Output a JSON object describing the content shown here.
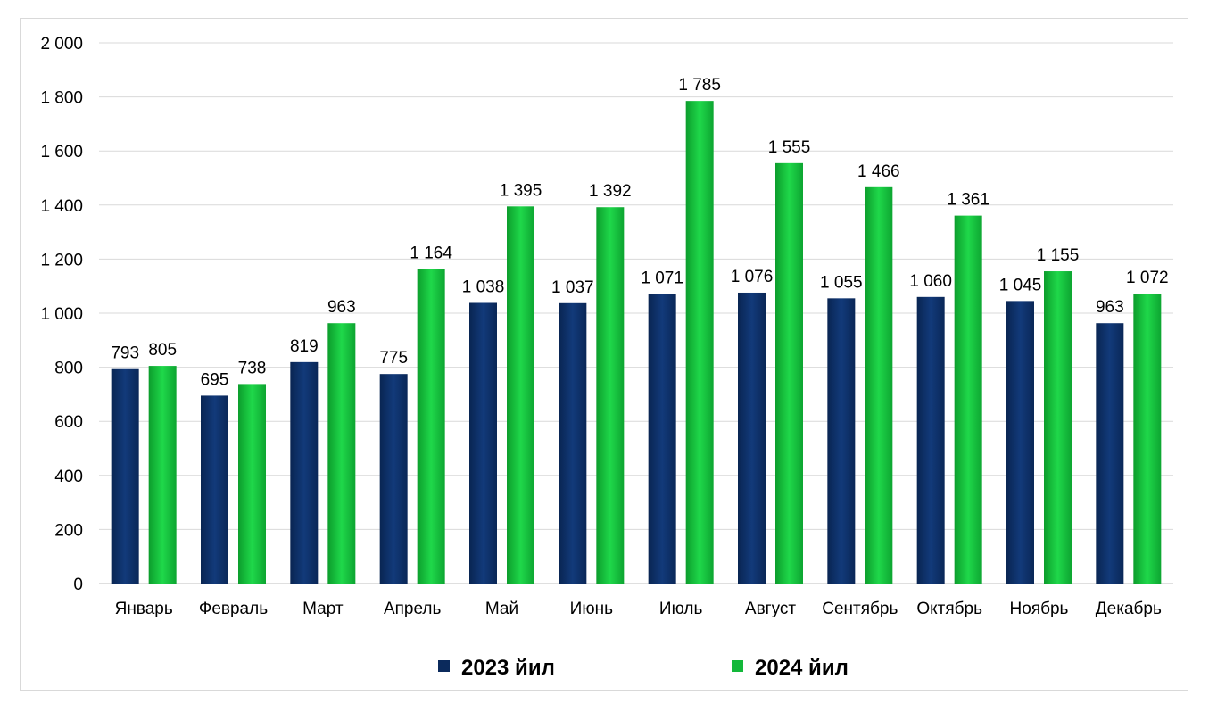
{
  "chart_data": {
    "type": "bar",
    "title": "",
    "xlabel": "",
    "ylabel": "",
    "categories": [
      "Январь",
      "Февраль",
      "Март",
      "Апрель",
      "Май",
      "Июнь",
      "Июль",
      "Август",
      "Сентябрь",
      "Октябрь",
      "Ноябрь",
      "Декабрь"
    ],
    "series": [
      {
        "name": "2023 йил",
        "color": "#0b2a5c",
        "values": [
          793,
          695,
          819,
          775,
          1038,
          1037,
          1071,
          1076,
          1055,
          1060,
          1045,
          963
        ],
        "labels": [
          "793",
          "695",
          "819",
          "775",
          "1 038",
          "1 037",
          "1 071",
          "1 076",
          "1 055",
          "1 060",
          "1 045",
          "963"
        ]
      },
      {
        "name": "2024 йил",
        "color": "#13b83a",
        "values": [
          805,
          738,
          963,
          1164,
          1395,
          1392,
          1785,
          1555,
          1466,
          1361,
          1155,
          1072
        ],
        "labels": [
          "805",
          "738",
          "963",
          "1 164",
          "1 395",
          "1 392",
          "1 785",
          "1 555",
          "1 466",
          "1 361",
          "1 155",
          "1 072"
        ]
      }
    ],
    "ylim": [
      0,
      2000
    ],
    "yticks": [
      0,
      200,
      400,
      600,
      800,
      1000,
      1200,
      1400,
      1600,
      1800,
      2000
    ],
    "ytick_labels": [
      "0",
      "200",
      "400",
      "600",
      "800",
      "1 000",
      "1 200",
      "1 400",
      "1 600",
      "1 800",
      "2 000"
    ],
    "grid": true,
    "legend_position": "bottom-center"
  }
}
